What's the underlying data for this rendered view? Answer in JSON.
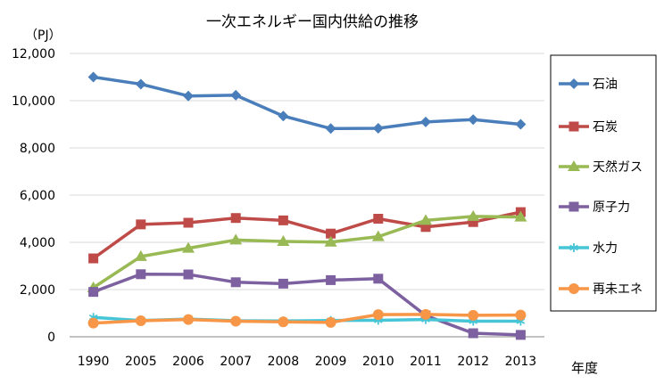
{
  "chart_data": {
    "type": "line",
    "title": "一次エネルギー国内供給の推移",
    "y_unit": "（PJ）",
    "xlabel": "年度",
    "ylabel": "",
    "categories": [
      "1990",
      "2005",
      "2006",
      "2007",
      "2008",
      "2009",
      "2010",
      "2011",
      "2012",
      "2013"
    ],
    "ylim": [
      0,
      12000
    ],
    "yticks": [
      0,
      2000,
      4000,
      6000,
      8000,
      10000,
      12000
    ],
    "ytick_labels": [
      "0",
      "2,000",
      "4,000",
      "6,000",
      "8,000",
      "10,000",
      "12,000"
    ],
    "grid": true,
    "legend_position": "right",
    "series": [
      {
        "name": "石油",
        "color": "#4A7EBB",
        "marker": "diamond",
        "values": [
          11000,
          10700,
          10200,
          10230,
          9350,
          8820,
          8830,
          9100,
          9200,
          9000
        ]
      },
      {
        "name": "石炭",
        "color": "#BE4B48",
        "marker": "square",
        "values": [
          3320,
          4760,
          4830,
          5030,
          4930,
          4370,
          5000,
          4650,
          4860,
          5280
        ]
      },
      {
        "name": "天然ガス",
        "color": "#98B954",
        "marker": "triangle",
        "values": [
          2080,
          3400,
          3750,
          4100,
          4040,
          4010,
          4240,
          4930,
          5100,
          5070
        ]
      },
      {
        "name": "原子力",
        "color": "#7D60A0",
        "marker": "square",
        "values": [
          1900,
          2650,
          2640,
          2310,
          2250,
          2400,
          2460,
          900,
          150,
          80
        ]
      },
      {
        "name": "水力",
        "color": "#46C5D6",
        "marker": "asterisk",
        "values": [
          820,
          690,
          750,
          680,
          670,
          690,
          700,
          730,
          660,
          660
        ]
      },
      {
        "name": "再未エネ",
        "color": "#F79646",
        "marker": "circle",
        "values": [
          580,
          680,
          730,
          660,
          630,
          610,
          940,
          950,
          910,
          920
        ]
      }
    ]
  }
}
